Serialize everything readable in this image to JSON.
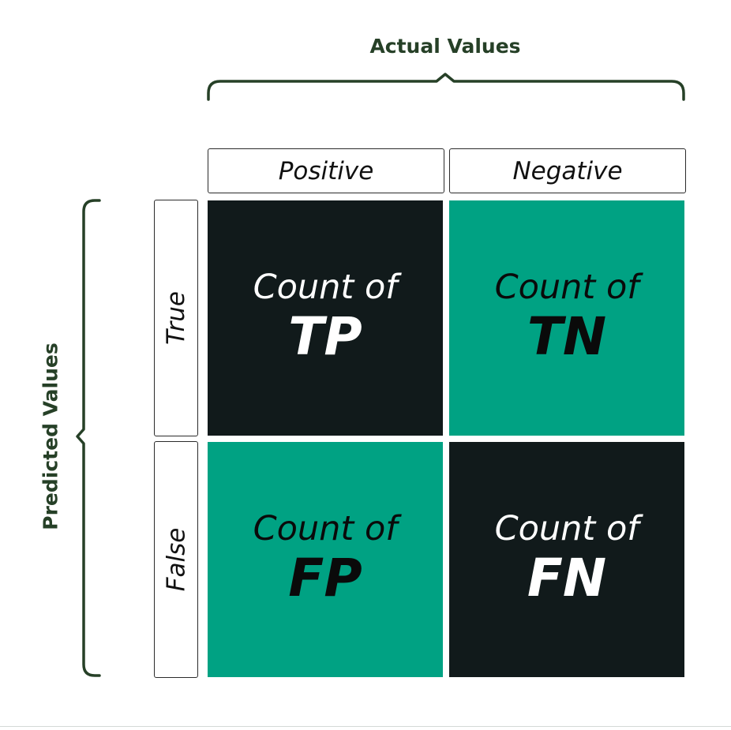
{
  "axes": {
    "actual_title": "Actual Values",
    "predicted_title": "Predicted Values"
  },
  "columns": [
    "Positive",
    "Negative"
  ],
  "rows": [
    "True",
    "False"
  ],
  "cells": [
    {
      "caption": "Count of",
      "code": "TP",
      "background": "#111a1b",
      "text_color": "#ffffff"
    },
    {
      "caption": "Count of",
      "code": "TN",
      "background": "#00a283",
      "text_color": "#0a0a0a"
    },
    {
      "caption": "Count of",
      "code": "FP",
      "background": "#00a283",
      "text_color": "#0a0a0a"
    },
    {
      "caption": "Count of",
      "code": "FN",
      "background": "#111a1b",
      "text_color": "#ffffff"
    }
  ],
  "colors": {
    "accent_dark": "#264027",
    "dark_cell": "#111a1b",
    "teal_cell": "#00a283"
  }
}
